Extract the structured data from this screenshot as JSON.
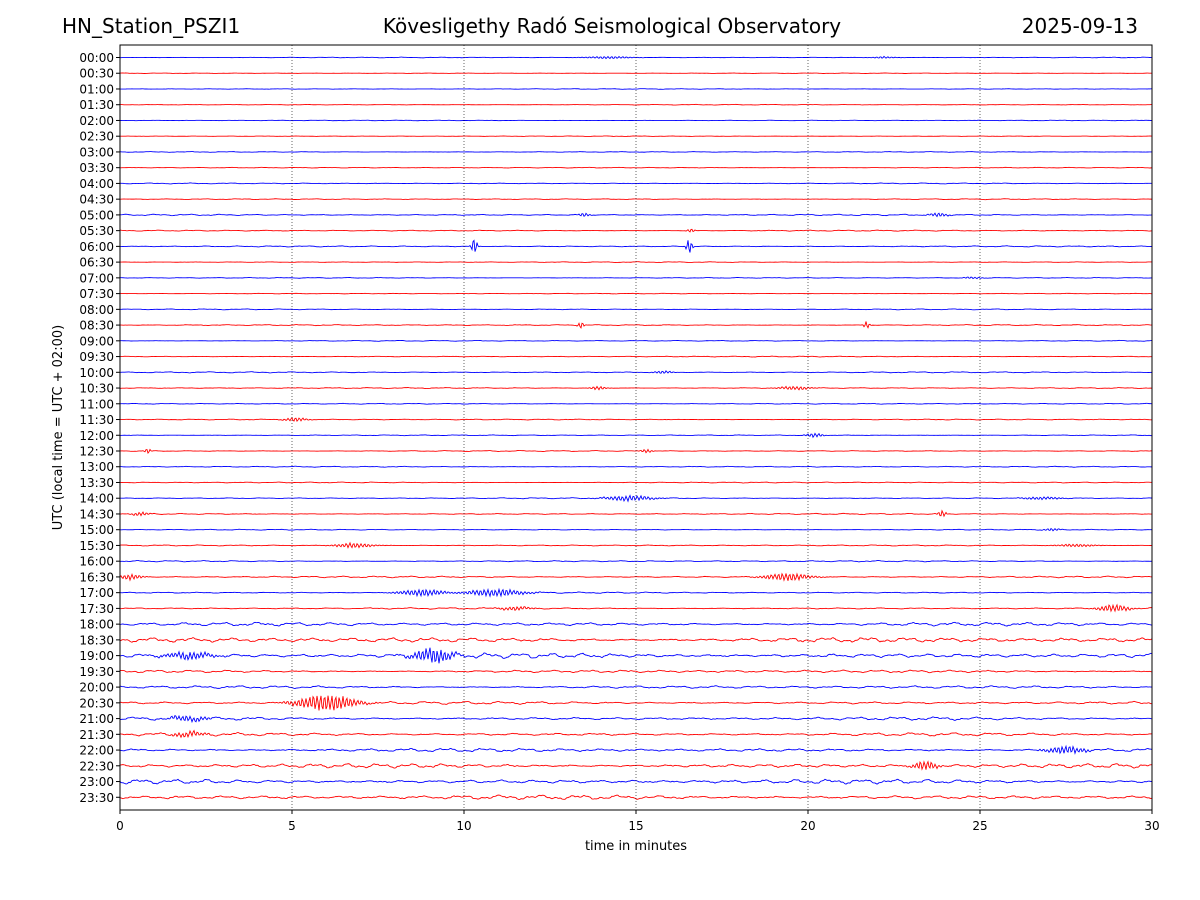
{
  "header": {
    "station": "HN_Station_PSZI1",
    "title": "Kövesligethy Radó Seismological Observatory",
    "date": "2025-09-13"
  },
  "chart_data": {
    "type": "line",
    "subtype": "helicorder",
    "xlabel": "time in minutes",
    "ylabel": "UTC (local time = UTC + 02:00)",
    "xlim": [
      0,
      30
    ],
    "xticks": [
      0,
      5,
      10,
      15,
      20,
      25,
      30
    ],
    "vertical_gridlines": [
      5,
      10,
      15,
      20,
      25
    ],
    "grid_style": "dotted",
    "row_labels": [
      "00:00",
      "00:30",
      "01:00",
      "01:30",
      "02:00",
      "02:30",
      "03:00",
      "03:30",
      "04:00",
      "04:30",
      "05:00",
      "05:30",
      "06:00",
      "06:30",
      "07:00",
      "07:30",
      "08:00",
      "08:30",
      "09:00",
      "09:30",
      "10:00",
      "10:30",
      "11:00",
      "11:30",
      "12:00",
      "12:30",
      "13:00",
      "13:30",
      "14:00",
      "14:30",
      "15:00",
      "15:30",
      "16:00",
      "16:30",
      "17:00",
      "17:30",
      "18:00",
      "18:30",
      "19:00",
      "19:30",
      "20:00",
      "20:30",
      "21:00",
      "21:30",
      "22:00",
      "22:30",
      "23:00",
      "23:30"
    ],
    "colors": [
      "#0000ff",
      "#ff0000"
    ],
    "noise_levels": [
      0.3,
      0.25,
      0.3,
      0.3,
      0.3,
      0.25,
      0.35,
      0.35,
      0.4,
      0.4,
      0.6,
      0.5,
      0.5,
      0.35,
      0.35,
      0.3,
      0.4,
      0.5,
      0.4,
      0.4,
      0.5,
      0.45,
      0.4,
      0.45,
      0.4,
      0.45,
      0.45,
      0.45,
      0.5,
      0.5,
      0.4,
      0.5,
      0.6,
      0.7,
      0.6,
      0.7,
      1.6,
      2.3,
      2.3,
      1.3,
      1.3,
      1.3,
      1.4,
      1.4,
      1.6,
      1.9,
      2.0,
      2.0
    ],
    "events": [
      {
        "row": 0,
        "t": 14.2,
        "amp": 1.2,
        "dur": 1.2
      },
      {
        "row": 0,
        "t": 22.2,
        "amp": 1.0,
        "dur": 0.6
      },
      {
        "row": 10,
        "t": 13.5,
        "amp": 2.0,
        "dur": 0.3
      },
      {
        "row": 10,
        "t": 23.8,
        "amp": 2.0,
        "dur": 0.5
      },
      {
        "row": 11,
        "t": 16.6,
        "amp": 2.0,
        "dur": 0.2
      },
      {
        "row": 12,
        "t": 10.3,
        "amp": 9.0,
        "dur": 0.15
      },
      {
        "row": 12,
        "t": 16.55,
        "amp": 9.0,
        "dur": 0.15
      },
      {
        "row": 14,
        "t": 24.8,
        "amp": 1.0,
        "dur": 0.5
      },
      {
        "row": 17,
        "t": 13.4,
        "amp": 4.0,
        "dur": 0.15
      },
      {
        "row": 17,
        "t": 21.7,
        "amp": 4.0,
        "dur": 0.15
      },
      {
        "row": 20,
        "t": 15.8,
        "amp": 1.5,
        "dur": 0.5
      },
      {
        "row": 21,
        "t": 13.9,
        "amp": 2.0,
        "dur": 0.4
      },
      {
        "row": 21,
        "t": 19.6,
        "amp": 2.0,
        "dur": 0.8
      },
      {
        "row": 23,
        "t": 5.1,
        "amp": 2.0,
        "dur": 0.6
      },
      {
        "row": 24,
        "t": 20.2,
        "amp": 2.5,
        "dur": 0.4
      },
      {
        "row": 25,
        "t": 0.8,
        "amp": 3.0,
        "dur": 0.15
      },
      {
        "row": 25,
        "t": 15.3,
        "amp": 2.0,
        "dur": 0.3
      },
      {
        "row": 28,
        "t": 14.8,
        "amp": 3.0,
        "dur": 1.2
      },
      {
        "row": 28,
        "t": 26.8,
        "amp": 1.5,
        "dur": 1.0
      },
      {
        "row": 29,
        "t": 0.6,
        "amp": 2.0,
        "dur": 0.4
      },
      {
        "row": 29,
        "t": 23.9,
        "amp": 4.0,
        "dur": 0.2
      },
      {
        "row": 30,
        "t": 27.1,
        "amp": 1.5,
        "dur": 0.4
      },
      {
        "row": 31,
        "t": 6.8,
        "amp": 2.5,
        "dur": 1.0
      },
      {
        "row": 31,
        "t": 27.8,
        "amp": 1.5,
        "dur": 1.0
      },
      {
        "row": 33,
        "t": 0.3,
        "amp": 3.0,
        "dur": 0.6
      },
      {
        "row": 33,
        "t": 19.4,
        "amp": 4.0,
        "dur": 1.2
      },
      {
        "row": 34,
        "t": 8.8,
        "amp": 3.5,
        "dur": 1.2
      },
      {
        "row": 34,
        "t": 10.9,
        "amp": 4.0,
        "dur": 1.5
      },
      {
        "row": 35,
        "t": 11.5,
        "amp": 2.0,
        "dur": 0.8
      },
      {
        "row": 35,
        "t": 28.9,
        "amp": 4.0,
        "dur": 0.8
      },
      {
        "row": 38,
        "t": 2.0,
        "amp": 4.0,
        "dur": 1.2
      },
      {
        "row": 38,
        "t": 9.1,
        "amp": 8.0,
        "dur": 1.0
      },
      {
        "row": 41,
        "t": 6.0,
        "amp": 9.0,
        "dur": 1.5
      },
      {
        "row": 42,
        "t": 2.0,
        "amp": 3.0,
        "dur": 1.0
      },
      {
        "row": 43,
        "t": 2.0,
        "amp": 3.0,
        "dur": 0.8
      },
      {
        "row": 44,
        "t": 27.5,
        "amp": 4.0,
        "dur": 1.0
      },
      {
        "row": 45,
        "t": 23.4,
        "amp": 5.0,
        "dur": 0.6
      }
    ]
  }
}
